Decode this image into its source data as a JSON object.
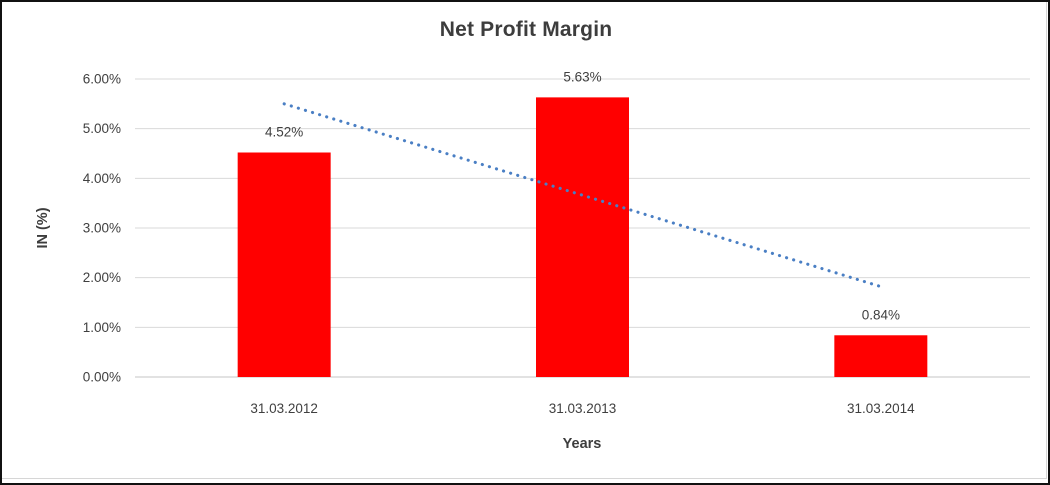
{
  "chart_data": {
    "type": "bar",
    "title": "Net Profit Margin",
    "xlabel": "Years",
    "ylabel": "IN (%)",
    "categories": [
      "31.03.2012",
      "31.03.2013",
      "31.03.2014"
    ],
    "values": [
      4.52,
      5.63,
      0.84
    ],
    "data_labels": [
      "4.52%",
      "5.63%",
      "0.84%"
    ],
    "ylim": [
      0,
      6
    ],
    "ytick_step": 1,
    "ytick_labels": [
      "0.00%",
      "1.00%",
      "2.00%",
      "3.00%",
      "4.00%",
      "5.00%",
      "6.00%"
    ],
    "grid": true,
    "legend_position": "none",
    "bar_color": "#ff0000",
    "gridline_color": "#d9d9d9",
    "baseline_color": "#c6c6c6",
    "text_color": "#3f3f3f",
    "trendline": {
      "type": "linear",
      "style": "dotted",
      "color": "#4a7fc4",
      "start_value": 5.5,
      "end_value": 1.82
    }
  }
}
